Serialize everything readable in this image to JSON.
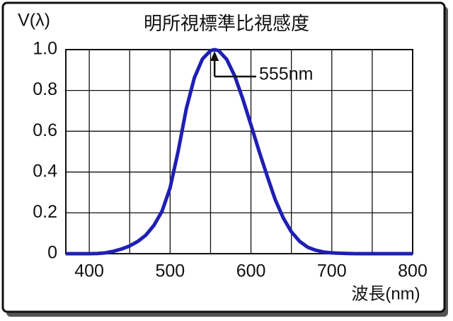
{
  "chart_data": {
    "type": "line",
    "title": "明所視標準比視感度",
    "y_label": "V(λ)",
    "x_label": "波長(nm)",
    "x": [
      371,
      380,
      390,
      400,
      410,
      420,
      430,
      440,
      450,
      460,
      470,
      480,
      490,
      500,
      510,
      520,
      530,
      540,
      550,
      555,
      560,
      570,
      580,
      590,
      600,
      610,
      620,
      630,
      640,
      650,
      660,
      670,
      680,
      690,
      700,
      710,
      720,
      730,
      740,
      750,
      760,
      770,
      780,
      800
    ],
    "series": [
      {
        "name": "V(λ)",
        "color": "#1f1fb4",
        "values": [
          0,
          0,
          0,
          0,
          0.001,
          0.004,
          0.012,
          0.023,
          0.038,
          0.06,
          0.091,
          0.139,
          0.208,
          0.323,
          0.503,
          0.71,
          0.862,
          0.954,
          0.995,
          1.0,
          0.995,
          0.952,
          0.87,
          0.757,
          0.631,
          0.503,
          0.381,
          0.265,
          0.175,
          0.107,
          0.061,
          0.032,
          0.017,
          0.008,
          0.004,
          0.002,
          0.001,
          0,
          0,
          0,
          0,
          0,
          0,
          0
        ]
      }
    ],
    "xlim": [
      371,
      800
    ],
    "ylim": [
      0,
      1
    ],
    "xticks": [
      400,
      500,
      600,
      700,
      800
    ],
    "xminor": [
      450,
      550,
      650,
      750
    ],
    "yticks": [
      0,
      {
        "value": 0.2,
        "label": "0.2"
      },
      {
        "value": 0.4,
        "label": "0.4"
      },
      {
        "value": 0.6,
        "label": "0.6"
      },
      {
        "value": 0.8,
        "label": "0.8"
      },
      {
        "value": 1,
        "label": "1.0"
      }
    ],
    "grid": true,
    "annotation": {
      "text": "555nm",
      "x": 555
    }
  }
}
